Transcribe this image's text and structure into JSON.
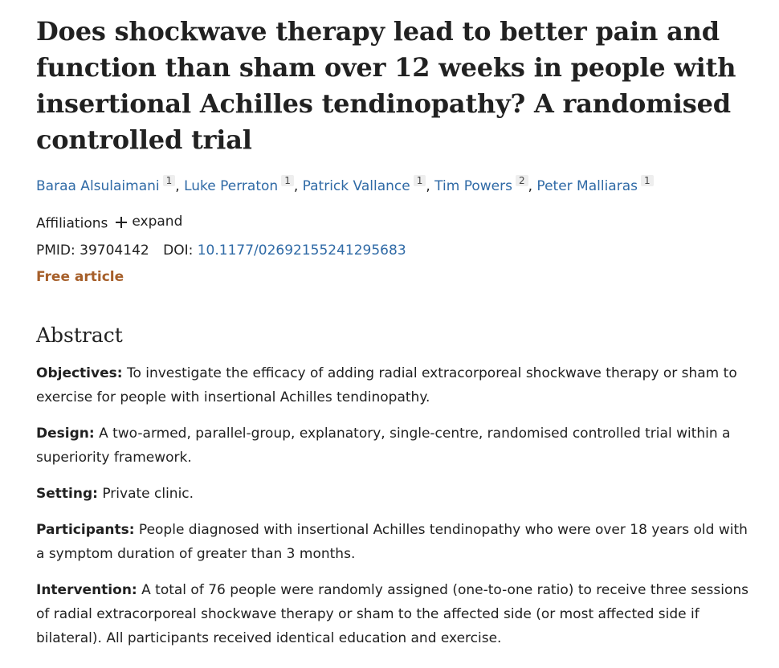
{
  "article": {
    "title": "Does shockwave therapy lead to better pain and function than sham over 12 weeks in people with insertional Achilles tendinopathy? A randomised controlled trial",
    "author_separator": ",",
    "authors": [
      {
        "name": "Baraa Alsulaimani",
        "affiliation": "1"
      },
      {
        "name": "Luke Perraton",
        "affiliation": "1"
      },
      {
        "name": "Patrick Vallance",
        "affiliation": "1"
      },
      {
        "name": "Tim Powers",
        "affiliation": "2"
      },
      {
        "name": "Peter Malliaras",
        "affiliation": "1"
      }
    ],
    "affiliations": {
      "label": "Affiliations",
      "toggle": "expand"
    },
    "pmid": {
      "label": "PMID:",
      "value": "39704142"
    },
    "doi": {
      "label": "DOI:",
      "value": "10.1177/02692155241295683"
    },
    "free": "Free article"
  },
  "abstract": {
    "heading": "Abstract",
    "sections": [
      {
        "label": "Objectives:",
        "text": "To investigate the efficacy of adding radial extracorporeal shockwave therapy or sham to exercise for people with insertional Achilles tendinopathy."
      },
      {
        "label": "Design:",
        "text": "A two-armed, parallel-group, explanatory, single-centre, randomised controlled trial within a superiority framework."
      },
      {
        "label": "Setting:",
        "text": "Private clinic."
      },
      {
        "label": "Participants:",
        "text": "People diagnosed with insertional Achilles tendinopathy who were over 18 years old with a symptom duration of greater than 3 months."
      },
      {
        "label": "Intervention:",
        "text": "A total of 76 people were randomly assigned (one-to-one ratio) to receive three sessions of radial extracorporeal shockwave therapy or sham to the affected side (or most affected side if bilateral). All participants received identical education and exercise."
      }
    ]
  }
}
